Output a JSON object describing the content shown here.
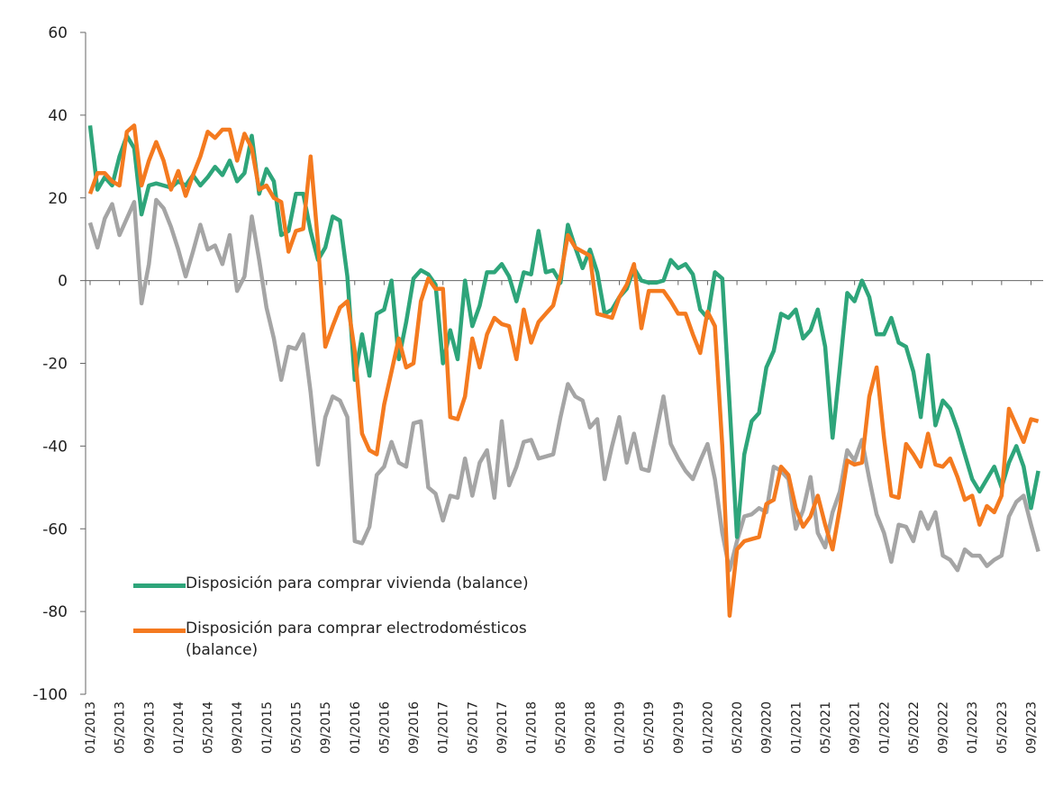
{
  "chart_data": {
    "type": "line",
    "categories": [
      "01/2013",
      null,
      null,
      null,
      "05/2013",
      null,
      null,
      null,
      "09/2013",
      null,
      null,
      null,
      "01/2014",
      null,
      null,
      null,
      "05/2014",
      null,
      null,
      null,
      "09/2014",
      null,
      null,
      null,
      "01/2015",
      null,
      null,
      null,
      "05/2015",
      null,
      null,
      null,
      "09/2015",
      null,
      null,
      null,
      "01/2016",
      null,
      null,
      null,
      "05/2016",
      null,
      null,
      null,
      "09/2016",
      null,
      null,
      null,
      "01/2017",
      null,
      null,
      null,
      "05/2017",
      null,
      null,
      null,
      "09/2017",
      null,
      null,
      null,
      "01/2018",
      null,
      null,
      null,
      "05/2018",
      null,
      null,
      null,
      "09/2018",
      null,
      null,
      null,
      "01/2019",
      null,
      null,
      null,
      "05/2019",
      null,
      null,
      null,
      "09/2019",
      null,
      null,
      null,
      "01/2020",
      null,
      null,
      null,
      "05/2020",
      null,
      null,
      null,
      "09/2020",
      null,
      null,
      null,
      "01/2021",
      null,
      null,
      null,
      "05/2021",
      null,
      null,
      null,
      "09/2021",
      null,
      null,
      null,
      "01/2022",
      null,
      null,
      null,
      "05/2022",
      null,
      null,
      null,
      "09/2022",
      null,
      null,
      null,
      "01/2023",
      null,
      null,
      null,
      "05/2023",
      null,
      null,
      null,
      "09/2023",
      null
    ],
    "series": [
      {
        "name": "Disposición para comprar vivienda (balance)",
        "color": "#2ea57a",
        "values": [
          37.5,
          22,
          25,
          23,
          30,
          35,
          32,
          16,
          23,
          23.5,
          23,
          22.5,
          24,
          23,
          25.5,
          23,
          25,
          27.5,
          25.5,
          29,
          24,
          26,
          35,
          21,
          27,
          24,
          11,
          12,
          21,
          21,
          12,
          5,
          8,
          15.5,
          14.5,
          1,
          -24,
          -13,
          -23,
          -8,
          -7,
          0,
          -19,
          -10,
          0.5,
          2.5,
          1.5,
          -1,
          -20,
          -12,
          -19,
          0,
          -11,
          -6,
          2,
          2,
          4,
          1,
          -5,
          2,
          1.5,
          12,
          2,
          2.5,
          -0.5,
          13.5,
          8,
          3,
          7.5,
          2,
          -8,
          -7,
          -4,
          -2,
          3,
          0,
          -0.5,
          -0.5,
          0,
          5,
          3,
          4,
          1.5,
          -7,
          -9,
          2,
          0.5,
          -30,
          -62,
          -42,
          -34,
          -32,
          -21,
          -17,
          -8,
          -9,
          -7,
          -14,
          -12,
          -7,
          -16,
          -38,
          -21,
          -3,
          -5,
          0,
          -4,
          -13,
          -13,
          -9,
          -15,
          -16,
          -22,
          -33,
          -18,
          -35,
          -29,
          -31,
          -36,
          -42,
          -48,
          -51,
          -48,
          -45,
          -50,
          -44,
          -40,
          -45,
          -55,
          -46
        ]
      },
      {
        "name": "Disposición para comprar electrodomésticos (balance)",
        "color": "#f47a1f",
        "values": [
          21,
          26,
          26,
          24,
          23,
          36,
          37.5,
          23,
          29,
          33.5,
          29,
          22,
          26.5,
          20.5,
          25.5,
          30,
          36,
          34.5,
          36.5,
          36.5,
          29,
          35.5,
          32,
          22,
          23,
          20,
          19,
          7,
          12,
          12.5,
          30,
          9,
          -16,
          -11,
          -6.5,
          -5,
          -17,
          -37,
          -41,
          -42,
          -30,
          -22,
          -14,
          -21,
          -20,
          -5,
          0.5,
          -2,
          -2,
          -33,
          -33.5,
          -28,
          -14,
          -21,
          -13,
          -9,
          -10.5,
          -11,
          -19,
          -7,
          -15,
          -10,
          -8,
          -6,
          1,
          11,
          8,
          7,
          6,
          -8,
          -8.5,
          -9,
          -4,
          -1,
          4,
          -11.5,
          -2.5,
          -2.5,
          -2.5,
          -5,
          -8,
          -8,
          -13,
          -17.5,
          -7.5,
          -11,
          -40,
          -81,
          -65,
          -63,
          -62.5,
          -62,
          -54,
          -53,
          -45,
          -47,
          -55,
          -59.5,
          -57,
          -52,
          -59,
          -65,
          -55,
          -43.5,
          -44.5,
          -44,
          -28,
          -21,
          -38,
          -52,
          -52.5,
          -39.5,
          -42,
          -45,
          -37,
          -44.5,
          -45,
          -43,
          -47.5,
          -53,
          -52,
          -59,
          -54.5,
          -56,
          -52,
          -31,
          -35,
          -39,
          -33.5,
          -34
        ]
      },
      {
        "color": "#a5a5a5",
        "values": [
          14,
          8,
          15,
          18.5,
          11,
          15,
          19,
          -5.5,
          4,
          19.5,
          17.5,
          13,
          7.5,
          1,
          7,
          13.5,
          7.5,
          8.5,
          4,
          11,
          -2.5,
          1,
          15.5,
          5,
          -6.5,
          -14,
          -24,
          -16,
          -16.5,
          -13,
          -27,
          -44.5,
          -33,
          -28,
          -29,
          -33,
          -63,
          -63.5,
          -59.5,
          -47,
          -45,
          -39,
          -44,
          -45,
          -34.5,
          -34,
          -50,
          -51.5,
          -58,
          -52,
          -52.5,
          -43,
          -52,
          -44,
          -41,
          -52.5,
          -34,
          -49.5,
          -45,
          -39,
          -38.5,
          -43,
          -42.5,
          -42,
          -33,
          -25,
          -28,
          -29,
          -35.5,
          -33.5,
          -48,
          -40,
          -33,
          -44,
          -37,
          -45.5,
          -46,
          -37,
          -28,
          -39.5,
          -43,
          -46,
          -48,
          -43.5,
          -39.5,
          -48,
          -61,
          -70,
          -63,
          -57,
          -56.5,
          -55,
          -56,
          -45,
          -46,
          -48,
          -60,
          -55.5,
          -47.5,
          -61,
          -64.5,
          -56,
          -51,
          -41,
          -43.5,
          -38.5,
          -48,
          -56.5,
          -61,
          -68,
          -59,
          -59.5,
          -63,
          -56,
          -60,
          -56,
          -66.5,
          -67.5,
          -70,
          -65,
          -66.5,
          -66.5,
          -69,
          -67.5,
          -66.5,
          -57,
          -53.5,
          -52,
          -59,
          -65.5
        ]
      }
    ],
    "ylim": [
      -100,
      60
    ],
    "yticks": [
      -100,
      -80,
      -60,
      -40,
      -20,
      0,
      20,
      40,
      60
    ]
  }
}
